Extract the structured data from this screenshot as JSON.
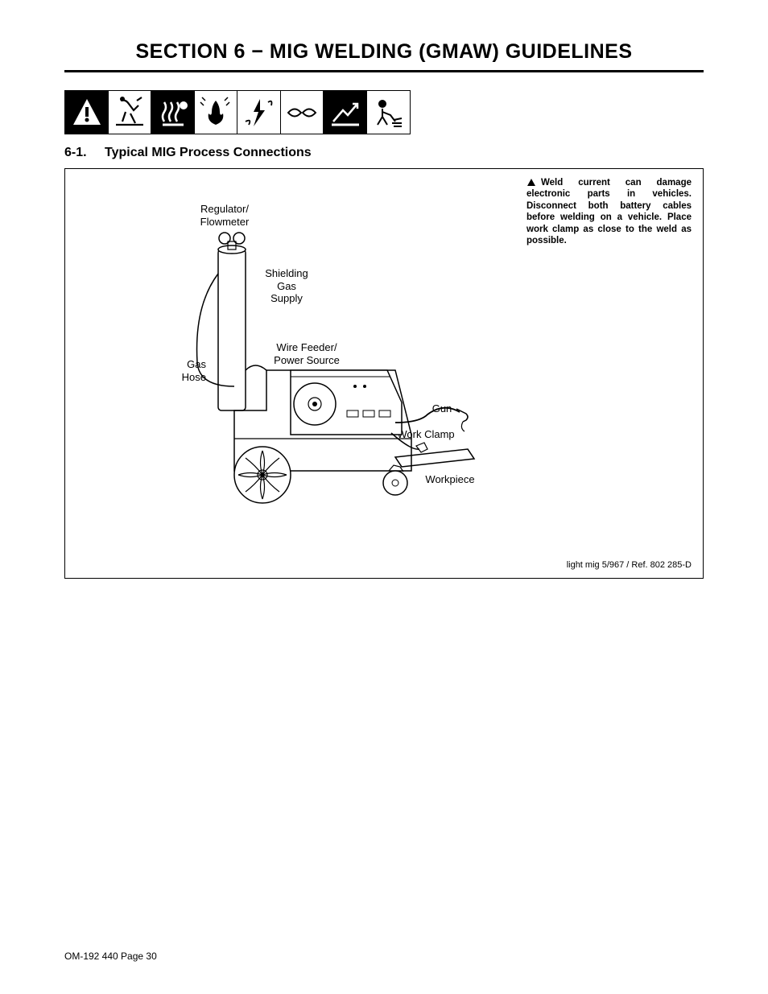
{
  "section_title": "SECTION 6 − MIG WELDING (GMAW) GUIDELINES",
  "subsection": {
    "num": "6-1.",
    "title": "Typical MIG Process Connections"
  },
  "labels": {
    "regulator": "Regulator/\nFlowmeter",
    "shielding": "Shielding\nGas\nSupply",
    "gashose": "Gas\nHose",
    "wirefeeder": "Wire Feeder/\nPower Source",
    "gun": "Gun",
    "workclamp": "Work Clamp",
    "workpiece": "Workpiece"
  },
  "warning": "Weld current can damage electronic parts in vehicles. Disconnect both battery cables before welding on a vehicle. Place work clamp as close to the weld as possible.",
  "ref": "light mig 5/967 / Ref. 802 285-D",
  "footer": "OM-192 440 Page 30",
  "colors": {
    "bg": "#ffffff",
    "fg": "#000000"
  }
}
